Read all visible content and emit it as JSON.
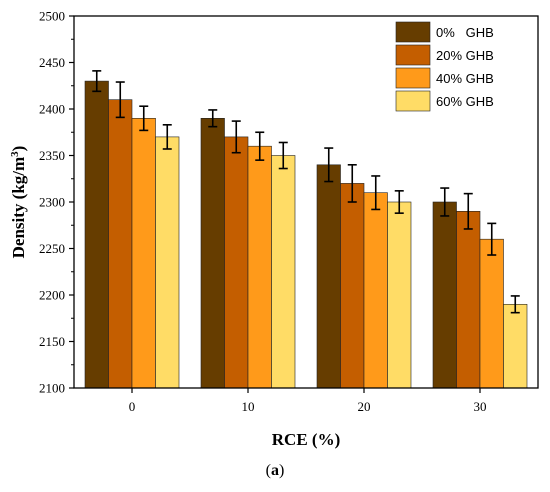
{
  "chart_data": {
    "type": "bar",
    "xlabel": "RCE (%)",
    "ylabel_main": "Density (kg/m",
    "ylabel_sup": "3",
    "ylabel_end": ")",
    "categories": [
      "0",
      "10",
      "20",
      "30"
    ],
    "ylim": [
      2100,
      2500
    ],
    "yticks": [
      2100,
      2150,
      2200,
      2250,
      2300,
      2350,
      2400,
      2450,
      2500
    ],
    "legend_position": "top-right",
    "grid": false,
    "error_bars": true,
    "series": [
      {
        "name": "0%   GHB",
        "color": "#663d00",
        "values": [
          2430,
          2390,
          2340,
          2300
        ],
        "errors": [
          11,
          9,
          18,
          15
        ]
      },
      {
        "name": "20% GHB",
        "color": "#c45e00",
        "values": [
          2410,
          2370,
          2320,
          2290
        ],
        "errors": [
          19,
          17,
          20,
          19
        ]
      },
      {
        "name": "40% GHB",
        "color": "#ff9a1a",
        "values": [
          2390,
          2360,
          2310,
          2260
        ],
        "errors": [
          13,
          15,
          18,
          17
        ]
      },
      {
        "name": "60% GHB",
        "color": "#ffdc66",
        "values": [
          2370,
          2350,
          2300,
          2190
        ],
        "errors": [
          13,
          14,
          12,
          9
        ]
      }
    ]
  },
  "caption": {
    "open": "(",
    "letter": "a",
    "close": ")"
  }
}
